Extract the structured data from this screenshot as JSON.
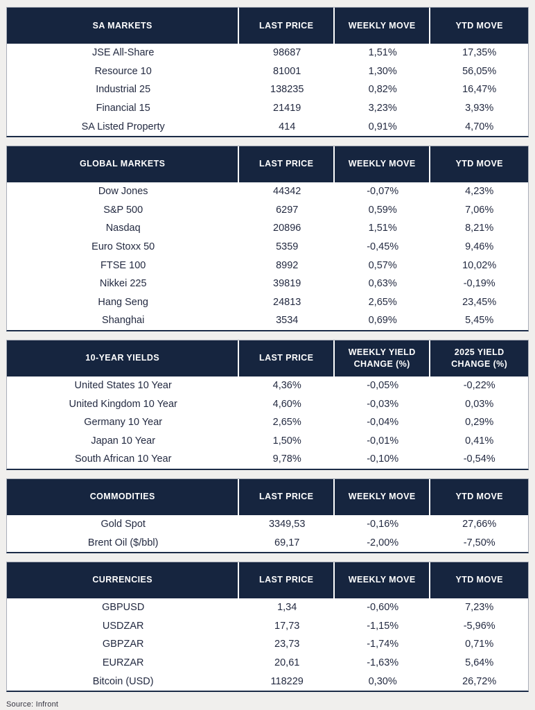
{
  "page": {
    "source_note": "Source: Infront"
  },
  "colors": {
    "header_bg": "#16253F",
    "header_text": "#FFFFFF",
    "body_text": "#232A41",
    "page_bg": "#F0EFED",
    "table_side_border": "#A9AEB8",
    "table_bottom_border": "#1B2B47"
  },
  "tables": [
    {
      "id": "sa-markets",
      "headers": [
        [
          "SA MARKETS"
        ],
        [
          "LAST PRICE"
        ],
        [
          "WEEKLY MOVE"
        ],
        [
          "YTD MOVE"
        ]
      ],
      "rows": [
        [
          "JSE All-Share",
          "98687",
          "1,51%",
          "17,35%"
        ],
        [
          "Resource 10",
          "81001",
          "1,30%",
          "56,05%"
        ],
        [
          "Industrial 25",
          "138235",
          "0,82%",
          "16,47%"
        ],
        [
          "Financial 15",
          "21419",
          "3,23%",
          "3,93%"
        ],
        [
          "SA Listed Property",
          "414",
          "0,91%",
          "4,70%"
        ]
      ]
    },
    {
      "id": "global-markets",
      "headers": [
        [
          "GLOBAL MARKETS"
        ],
        [
          "LAST PRICE"
        ],
        [
          "WEEKLY MOVE"
        ],
        [
          "YTD MOVE"
        ]
      ],
      "rows": [
        [
          "Dow Jones",
          "44342",
          "-0,07%",
          "4,23%"
        ],
        [
          "S&P 500",
          "6297",
          "0,59%",
          "7,06%"
        ],
        [
          "Nasdaq",
          "20896",
          "1,51%",
          "8,21%"
        ],
        [
          "Euro Stoxx 50",
          "5359",
          "-0,45%",
          "9,46%"
        ],
        [
          "FTSE 100",
          "8992",
          "0,57%",
          "10,02%"
        ],
        [
          "Nikkei 225",
          "39819",
          "0,63%",
          "-0,19%"
        ],
        [
          "Hang Seng",
          "24813",
          "2,65%",
          "23,45%"
        ],
        [
          "Shanghai",
          "3534",
          "0,69%",
          "5,45%"
        ]
      ]
    },
    {
      "id": "ten-year-yields",
      "headers": [
        [
          "10-YEAR YIELDS"
        ],
        [
          "LAST PRICE"
        ],
        [
          "WEEKLY YIELD",
          "CHANGE (%)"
        ],
        [
          "2025 YIELD",
          "CHANGE (%)"
        ]
      ],
      "rows": [
        [
          "United States 10 Year",
          "4,36%",
          "-0,05%",
          "-0,22%"
        ],
        [
          "United Kingdom 10 Year",
          "4,60%",
          "-0,03%",
          "0,03%"
        ],
        [
          "Germany 10 Year",
          "2,65%",
          "-0,04%",
          "0,29%"
        ],
        [
          "Japan 10 Year",
          "1,50%",
          "-0,01%",
          "0,41%"
        ],
        [
          "South African 10 Year",
          "9,78%",
          "-0,10%",
          "-0,54%"
        ]
      ]
    },
    {
      "id": "commodities",
      "headers": [
        [
          "COMMODITIES"
        ],
        [
          "LAST PRICE"
        ],
        [
          "WEEKLY MOVE"
        ],
        [
          "YTD MOVE"
        ]
      ],
      "rows": [
        [
          "Gold Spot",
          "3349,53",
          "-0,16%",
          "27,66%"
        ],
        [
          "Brent Oil ($/bbl)",
          "69,17",
          "-2,00%",
          "-7,50%"
        ]
      ]
    },
    {
      "id": "currencies",
      "headers": [
        [
          "CURRENCIES"
        ],
        [
          "LAST PRICE"
        ],
        [
          "WEEKLY MOVE"
        ],
        [
          "YTD MOVE"
        ]
      ],
      "rows": [
        [
          "GBPUSD",
          "1,34",
          "-0,60%",
          "7,23%"
        ],
        [
          "USDZAR",
          "17,73",
          "-1,15%",
          "-5,96%"
        ],
        [
          "GBPZAR",
          "23,73",
          "-1,74%",
          "0,71%"
        ],
        [
          "EURZAR",
          "20,61",
          "-1,63%",
          "5,64%"
        ],
        [
          "Bitcoin (USD)",
          "118229",
          "0,30%",
          "26,72%"
        ]
      ]
    }
  ]
}
